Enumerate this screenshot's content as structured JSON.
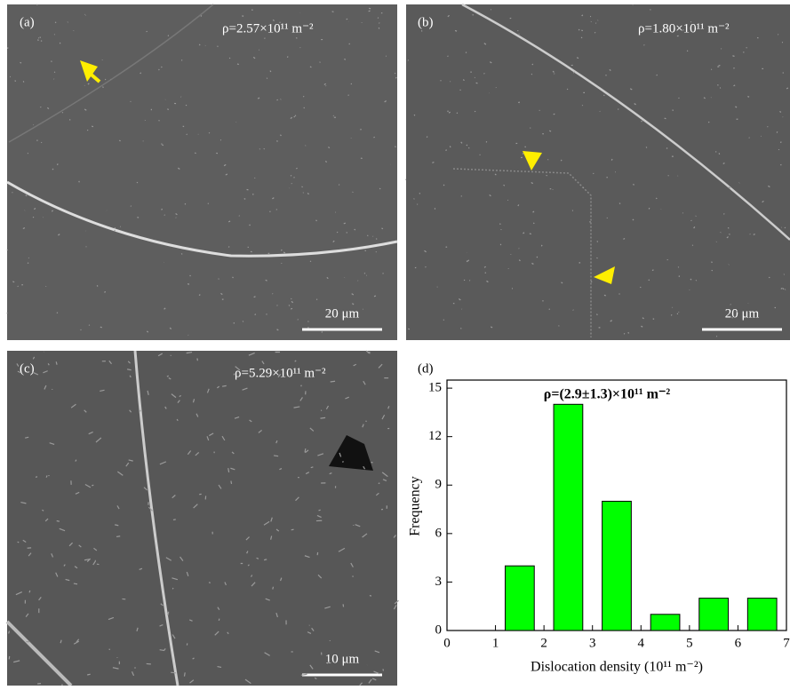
{
  "panels": [
    {
      "label": "(a)",
      "density": "ρ=2.57×10¹¹ m⁻²",
      "scale_bar": "20 μm"
    },
    {
      "label": "(b)",
      "density": "ρ=1.80×10¹¹ m⁻²",
      "scale_bar": "20 μm"
    },
    {
      "label": "(c)",
      "density": "ρ=5.29×10¹¹ m⁻²",
      "scale_bar": "10 μm"
    }
  ],
  "chart_data": {
    "type": "bar",
    "label": "(d)",
    "annotation": "ρ=(2.9±1.3)×10¹¹ m⁻²",
    "x_label": "Dislocation density (10¹¹ m⁻²)",
    "y_label": "Frequency",
    "x": [
      1.5,
      2.5,
      3.5,
      4.5,
      5.5,
      6.5
    ],
    "values": [
      4,
      14,
      8,
      1,
      2,
      2
    ],
    "color": "#00ff00",
    "xlim": [
      0,
      7
    ],
    "xticks": [
      0,
      1,
      2,
      3,
      4,
      5,
      6,
      7
    ],
    "ylim": [
      0,
      15.5
    ],
    "yticks": [
      0,
      3,
      6,
      9,
      12,
      15
    ]
  }
}
